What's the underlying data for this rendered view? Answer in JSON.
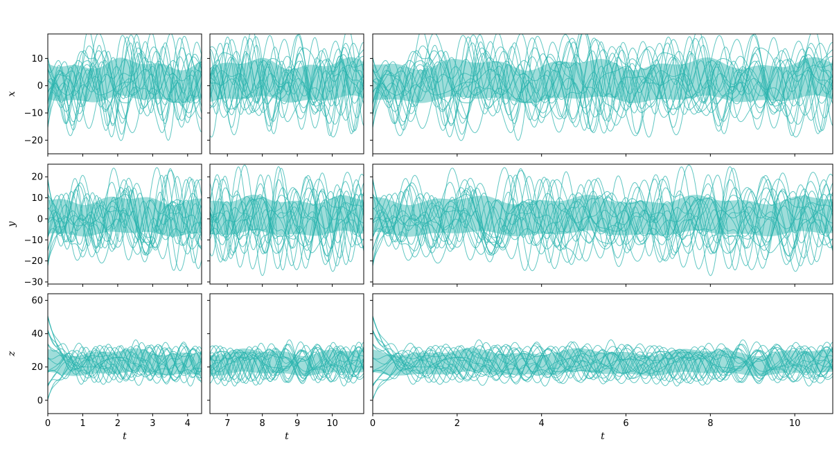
{
  "figure": {
    "line_color": "#2ab3ad",
    "band_color": "#2ab3ad"
  },
  "chart_data": [
    {
      "type": "line",
      "variable": "x",
      "xlabel": "",
      "ylabel": "x",
      "xlim": [
        0,
        4.4
      ],
      "ylim": [
        -25,
        19
      ],
      "xticks": [
        0,
        1,
        2,
        3,
        4
      ],
      "yticks": [
        -20,
        -10,
        0,
        10
      ],
      "show_xticklabels": false,
      "show_yticklabels": true,
      "band": {
        "lower": -5,
        "upper": 8
      }
    },
    {
      "type": "line",
      "variable": "x",
      "xlabel": "",
      "ylabel": "",
      "xlim": [
        6.5,
        10.9
      ],
      "ylim": [
        -25,
        19
      ],
      "xticks": [
        7,
        8,
        9,
        10
      ],
      "yticks": [
        -20,
        -10,
        0,
        10
      ],
      "show_xticklabels": false,
      "show_yticklabels": false,
      "band": {
        "lower": -5,
        "upper": 8
      }
    },
    {
      "type": "line",
      "variable": "x",
      "xlabel": "",
      "ylabel": "",
      "xlim": [
        0,
        10.9
      ],
      "ylim": [
        -25,
        19
      ],
      "xticks": [
        0,
        2,
        4,
        6,
        8,
        10
      ],
      "yticks": [
        -20,
        -10,
        0,
        10
      ],
      "show_xticklabels": false,
      "show_yticklabels": false,
      "band": {
        "lower": -5,
        "upper": 8
      }
    },
    {
      "type": "line",
      "variable": "y",
      "xlabel": "",
      "ylabel": "y",
      "xlim": [
        0,
        4.4
      ],
      "ylim": [
        -31,
        26
      ],
      "xticks": [
        0,
        1,
        2,
        3,
        4
      ],
      "yticks": [
        -30,
        -20,
        -10,
        0,
        10,
        20
      ],
      "show_xticklabels": false,
      "show_yticklabels": true,
      "band": {
        "lower": -7,
        "upper": 9
      }
    },
    {
      "type": "line",
      "variable": "y",
      "xlabel": "",
      "ylabel": "",
      "xlim": [
        6.5,
        10.9
      ],
      "ylim": [
        -31,
        26
      ],
      "xticks": [
        7,
        8,
        9,
        10
      ],
      "yticks": [
        -30,
        -20,
        -10,
        0,
        10,
        20
      ],
      "show_xticklabels": false,
      "show_yticklabels": false,
      "band": {
        "lower": -7,
        "upper": 9
      }
    },
    {
      "type": "line",
      "variable": "y",
      "xlabel": "",
      "ylabel": "",
      "xlim": [
        0,
        10.9
      ],
      "ylim": [
        -31,
        26
      ],
      "xticks": [
        0,
        2,
        4,
        6,
        8,
        10
      ],
      "yticks": [
        -30,
        -20,
        -10,
        0,
        10,
        20
      ],
      "show_xticklabels": false,
      "show_yticklabels": false,
      "band": {
        "lower": -7,
        "upper": 9
      }
    },
    {
      "type": "line",
      "variable": "z",
      "xlabel": "t",
      "ylabel": "z",
      "xlim": [
        0,
        4.4
      ],
      "ylim": [
        -8,
        64
      ],
      "xticks": [
        0,
        1,
        2,
        3,
        4
      ],
      "yticks": [
        0,
        20,
        40,
        60
      ],
      "show_xticklabels": true,
      "show_yticklabels": true,
      "band": {
        "lower": 16,
        "upper": 29
      }
    },
    {
      "type": "line",
      "variable": "z",
      "xlabel": "t",
      "ylabel": "",
      "xlim": [
        6.5,
        10.9
      ],
      "ylim": [
        -8,
        64
      ],
      "xticks": [
        7,
        8,
        9,
        10
      ],
      "yticks": [
        0,
        20,
        40,
        60
      ],
      "show_xticklabels": true,
      "show_yticklabels": false,
      "band": {
        "lower": 16,
        "upper": 29
      }
    },
    {
      "type": "line",
      "variable": "z",
      "xlabel": "t",
      "ylabel": "",
      "xlim": [
        0,
        10.9
      ],
      "ylim": [
        -8,
        64
      ],
      "xticks": [
        0,
        2,
        4,
        6,
        8,
        10
      ],
      "yticks": [
        0,
        20,
        40,
        60
      ],
      "show_xticklabels": true,
      "show_yticklabels": false,
      "band": {
        "lower": 16,
        "upper": 29
      }
    }
  ]
}
